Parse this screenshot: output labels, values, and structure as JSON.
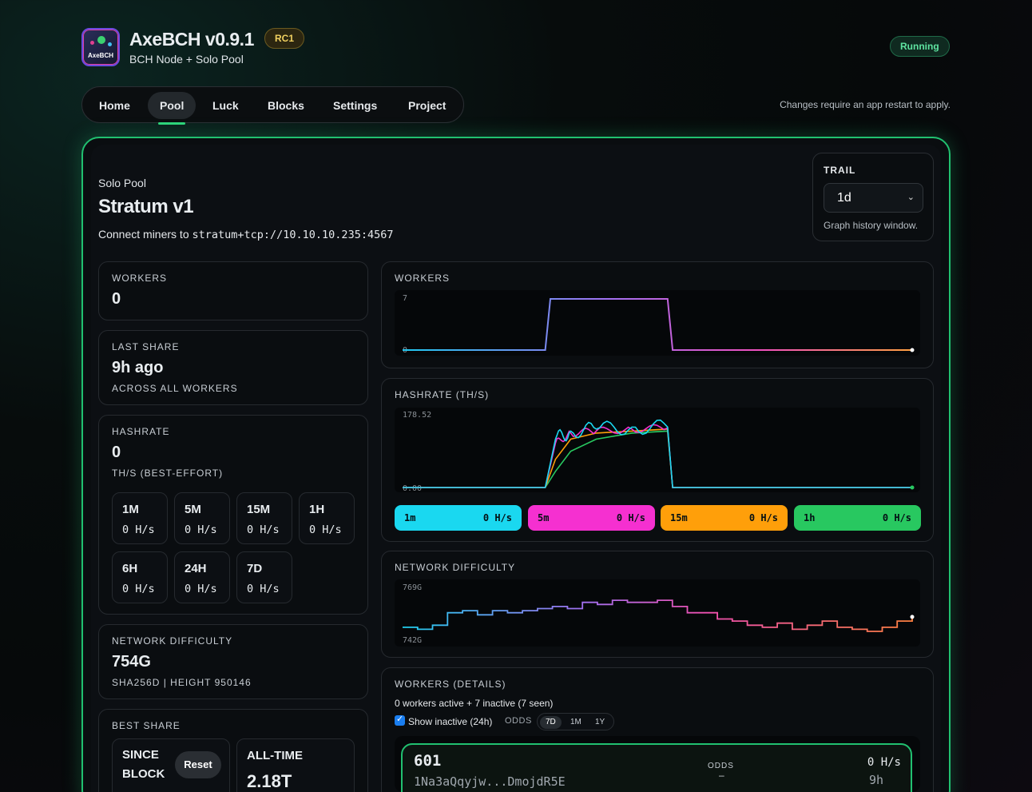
{
  "app": {
    "name": "AxeBCH v0.9.1",
    "badge": "RC1",
    "subtitle": "BCH Node + Solo Pool",
    "status": "Running",
    "logo_text": "AxeBCH"
  },
  "nav": {
    "items": [
      "Home",
      "Pool",
      "Luck",
      "Blocks",
      "Settings",
      "Project"
    ],
    "active": "Pool",
    "restart_note": "Changes require an app restart to apply."
  },
  "pool": {
    "kicker": "Solo Pool",
    "title": "Stratum v1",
    "connect_prefix": "Connect miners to",
    "connect_url": "stratum+tcp://10.10.10.235:4567"
  },
  "trail": {
    "label": "TRAIL",
    "value": "1d",
    "help": "Graph history window."
  },
  "stats": {
    "workers": {
      "label": "WORKERS",
      "value": "0"
    },
    "last_share": {
      "label": "LAST SHARE",
      "value": "9h ago",
      "sub": "ACROSS ALL WORKERS"
    },
    "hashrate": {
      "label": "HASHRATE",
      "value": "0",
      "sub": "TH/S (BEST-EFFORT)",
      "windows": [
        {
          "label": "1M",
          "value": "0 H/s"
        },
        {
          "label": "5M",
          "value": "0 H/s"
        },
        {
          "label": "15M",
          "value": "0 H/s"
        },
        {
          "label": "1H",
          "value": "0 H/s"
        },
        {
          "label": "6H",
          "value": "0 H/s"
        },
        {
          "label": "24H",
          "value": "0 H/s"
        },
        {
          "label": "7D",
          "value": "0 H/s"
        }
      ]
    },
    "network_difficulty": {
      "label": "NETWORK DIFFICULTY",
      "value": "754G",
      "sub": "SHA256D | HEIGHT 950146"
    },
    "best_share": {
      "label": "BEST SHARE",
      "since_block_label": "SINCE BLOCK",
      "reset_label": "Reset",
      "all_time_label": "ALL-TIME",
      "all_time_value": "2.18T"
    }
  },
  "charts": {
    "workers": {
      "title": "WORKERS",
      "y_max_label": "7",
      "y_min_label": "0"
    },
    "hashrate": {
      "title": "HASHRATE (TH/S)",
      "y_max_label": "178.52",
      "y_min_label": "0.00",
      "pills": [
        {
          "label": "1m",
          "value": "0 H/s",
          "color": "#1ad8f0"
        },
        {
          "label": "5m",
          "value": "0 H/s",
          "color": "#f530d0"
        },
        {
          "label": "15m",
          "value": "0 H/s",
          "color": "#ff9f0a"
        },
        {
          "label": "1h",
          "value": "0 H/s",
          "color": "#28c860"
        }
      ]
    },
    "network_difficulty": {
      "title": "NETWORK DIFFICULTY",
      "y_max_label": "769G",
      "y_min_label": "742G"
    }
  },
  "chart_data": [
    {
      "type": "line",
      "title": "WORKERS",
      "ylim": [
        0,
        7
      ],
      "x": [
        0,
        0.28,
        0.29,
        0.52,
        0.53,
        1.0
      ],
      "series": [
        {
          "values": [
            0,
            0,
            7,
            7,
            0,
            0
          ]
        }
      ]
    },
    {
      "type": "line",
      "title": "HASHRATE (TH/S)",
      "ylim": [
        0,
        178.52
      ],
      "x": [
        0,
        0.28,
        0.3,
        0.33,
        0.38,
        0.45,
        0.52,
        0.53,
        1.0
      ],
      "series": [
        {
          "name": "1m",
          "values": [
            0,
            0,
            120,
            140,
            145,
            150,
            150,
            0,
            0
          ]
        },
        {
          "name": "5m",
          "values": [
            0,
            0,
            110,
            135,
            140,
            145,
            148,
            0,
            0
          ]
        },
        {
          "name": "15m",
          "values": [
            0,
            0,
            70,
            120,
            135,
            140,
            145,
            0,
            0
          ]
        },
        {
          "name": "1h",
          "values": [
            0,
            0,
            40,
            90,
            120,
            135,
            140,
            0,
            0
          ]
        }
      ]
    },
    {
      "type": "line",
      "title": "NETWORK DIFFICULTY",
      "ylim": [
        742,
        769
      ],
      "series": [
        {
          "values": [
            749,
            748,
            750,
            756,
            757,
            755,
            757,
            756,
            757,
            758,
            759,
            758,
            761,
            760,
            762,
            761,
            761,
            762,
            759,
            756,
            756,
            753,
            752,
            750,
            749,
            751,
            748,
            750,
            752,
            749,
            748,
            747,
            749,
            752,
            754
          ]
        }
      ]
    }
  ],
  "workers_details": {
    "title": "WORKERS (DETAILS)",
    "summary": "0 workers active + 7 inactive (7 seen)",
    "show_inactive_label": "Show inactive (24h)",
    "odds_label": "ODDS",
    "odds_ranges": [
      "7D",
      "1M",
      "1Y"
    ],
    "odds_active": "7D",
    "rows": [
      {
        "name": "601",
        "address": "1Na3aQqyjw...DmojdR5E",
        "odds_label": "ODDS",
        "odds_value": "–",
        "hashrate": "0 H/s",
        "last_seen": "9h"
      }
    ]
  }
}
